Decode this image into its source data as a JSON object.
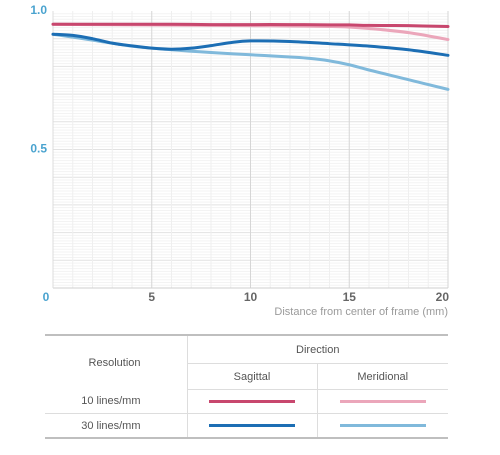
{
  "chart_data": {
    "type": "line",
    "xlabel": "Distance from center of frame (mm)",
    "ylabel": "",
    "xlim": [
      0,
      20
    ],
    "ylim": [
      0,
      1.0
    ],
    "x_ticks": [
      "0",
      "5",
      "10",
      "15",
      "20"
    ],
    "y_ticks": [
      "0.5",
      "1.0"
    ],
    "grid": true,
    "series": [
      {
        "name": "10 lines/mm Sagittal",
        "color": "#c8476e",
        "x": [
          0,
          2,
          4,
          6,
          8,
          10,
          12,
          14,
          15,
          16,
          18,
          20
        ],
        "values": [
          0.952,
          0.952,
          0.952,
          0.952,
          0.951,
          0.951,
          0.951,
          0.95,
          0.95,
          0.948,
          0.947,
          0.944
        ]
      },
      {
        "name": "10 lines/mm Meridional",
        "color": "#eba6ba",
        "x": [
          0,
          2,
          4,
          6,
          8,
          10,
          12,
          14,
          15,
          16,
          18,
          20
        ],
        "values": [
          0.952,
          0.951,
          0.95,
          0.949,
          0.948,
          0.947,
          0.946,
          0.944,
          0.942,
          0.937,
          0.922,
          0.897
        ]
      },
      {
        "name": "30 lines/mm Sagittal",
        "color": "#1c6eb4",
        "x": [
          0,
          1,
          2,
          3,
          4,
          5,
          6,
          7,
          8,
          9,
          10,
          12,
          14,
          16,
          18,
          20
        ],
        "values": [
          0.916,
          0.912,
          0.9,
          0.884,
          0.874,
          0.866,
          0.862,
          0.866,
          0.875,
          0.886,
          0.892,
          0.89,
          0.882,
          0.873,
          0.86,
          0.84
        ]
      },
      {
        "name": "30 lines/mm Meridional",
        "color": "#80b9db",
        "x": [
          0,
          2,
          4,
          6,
          8,
          10,
          12,
          13,
          14,
          15,
          16,
          18,
          20
        ],
        "values": [
          0.916,
          0.895,
          0.873,
          0.86,
          0.85,
          0.842,
          0.834,
          0.829,
          0.82,
          0.806,
          0.787,
          0.752,
          0.717
        ]
      }
    ]
  },
  "legend": {
    "resolution_header": "Resolution",
    "direction_header": "Direction",
    "sagittal_label": "Sagittal",
    "meridional_label": "Meridional",
    "rows": [
      {
        "label": "10 lines/mm",
        "sagittal_color": "#c8476e",
        "meridional_color": "#eba6ba"
      },
      {
        "label": "30 lines/mm",
        "sagittal_color": "#1c6eb4",
        "meridional_color": "#80b9db"
      }
    ]
  }
}
